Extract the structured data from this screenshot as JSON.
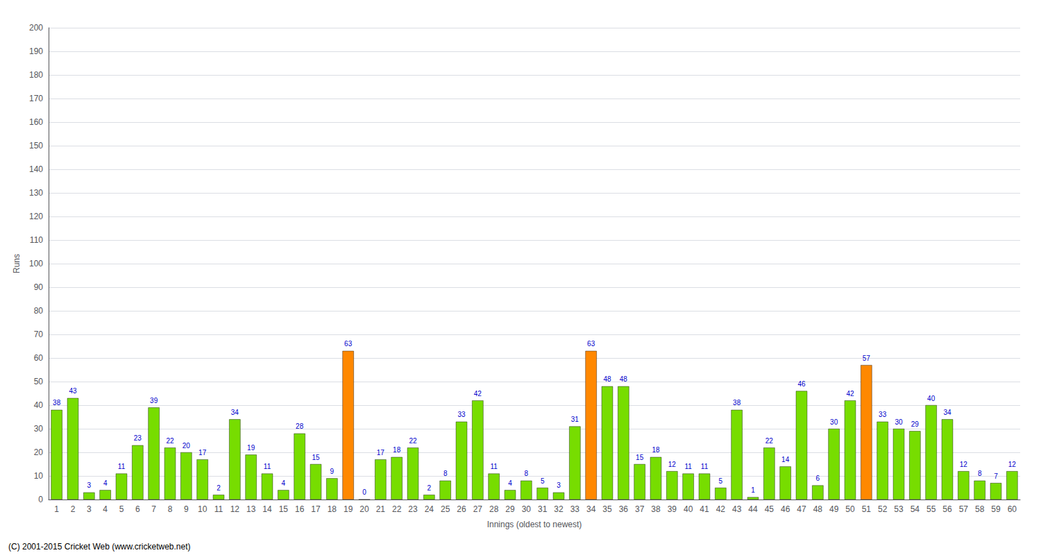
{
  "chart_data": {
    "type": "bar",
    "xlabel": "Innings (oldest to newest)",
    "ylabel": "Runs",
    "categories": [
      "1",
      "2",
      "3",
      "4",
      "5",
      "6",
      "7",
      "8",
      "9",
      "10",
      "11",
      "12",
      "13",
      "14",
      "15",
      "16",
      "17",
      "18",
      "19",
      "20",
      "21",
      "22",
      "23",
      "24",
      "25",
      "26",
      "27",
      "28",
      "29",
      "30",
      "31",
      "32",
      "33",
      "34",
      "35",
      "36",
      "37",
      "38",
      "39",
      "40",
      "41",
      "42",
      "43",
      "44",
      "45",
      "46",
      "47",
      "48",
      "49",
      "50",
      "51",
      "52",
      "53",
      "54",
      "55",
      "56",
      "57",
      "58",
      "59",
      "60"
    ],
    "values": [
      38,
      43,
      3,
      4,
      11,
      23,
      39,
      22,
      20,
      17,
      2,
      34,
      19,
      11,
      4,
      28,
      15,
      9,
      63,
      0,
      17,
      18,
      22,
      2,
      8,
      33,
      42,
      11,
      4,
      8,
      5,
      3,
      31,
      63,
      48,
      48,
      15,
      18,
      12,
      11,
      11,
      5,
      38,
      1,
      22,
      14,
      46,
      6,
      30,
      42,
      57,
      33,
      30,
      29,
      40,
      34,
      12,
      8,
      7,
      12
    ],
    "colors": [
      "#77dd00",
      "#77dd00",
      "#77dd00",
      "#77dd00",
      "#77dd00",
      "#77dd00",
      "#77dd00",
      "#77dd00",
      "#77dd00",
      "#77dd00",
      "#77dd00",
      "#77dd00",
      "#77dd00",
      "#77dd00",
      "#77dd00",
      "#77dd00",
      "#77dd00",
      "#77dd00",
      "#ff8800",
      "#77dd00",
      "#77dd00",
      "#77dd00",
      "#77dd00",
      "#77dd00",
      "#77dd00",
      "#77dd00",
      "#77dd00",
      "#77dd00",
      "#77dd00",
      "#77dd00",
      "#77dd00",
      "#77dd00",
      "#77dd00",
      "#ff8800",
      "#77dd00",
      "#77dd00",
      "#77dd00",
      "#77dd00",
      "#77dd00",
      "#77dd00",
      "#77dd00",
      "#77dd00",
      "#77dd00",
      "#77dd00",
      "#77dd00",
      "#77dd00",
      "#77dd00",
      "#77dd00",
      "#77dd00",
      "#77dd00",
      "#ff8800",
      "#77dd00",
      "#77dd00",
      "#77dd00",
      "#77dd00",
      "#77dd00",
      "#77dd00",
      "#77dd00",
      "#77dd00",
      "#77dd00"
    ],
    "ylim": [
      0,
      200
    ],
    "yticks": [
      0,
      10,
      20,
      30,
      40,
      50,
      60,
      70,
      80,
      90,
      100,
      110,
      120,
      130,
      140,
      150,
      160,
      170,
      180,
      190,
      200
    ],
    "grid": true,
    "data_labels": true,
    "annotations": [
      "(C) 2001-2015 Cricket Web (www.cricketweb.net)"
    ]
  }
}
